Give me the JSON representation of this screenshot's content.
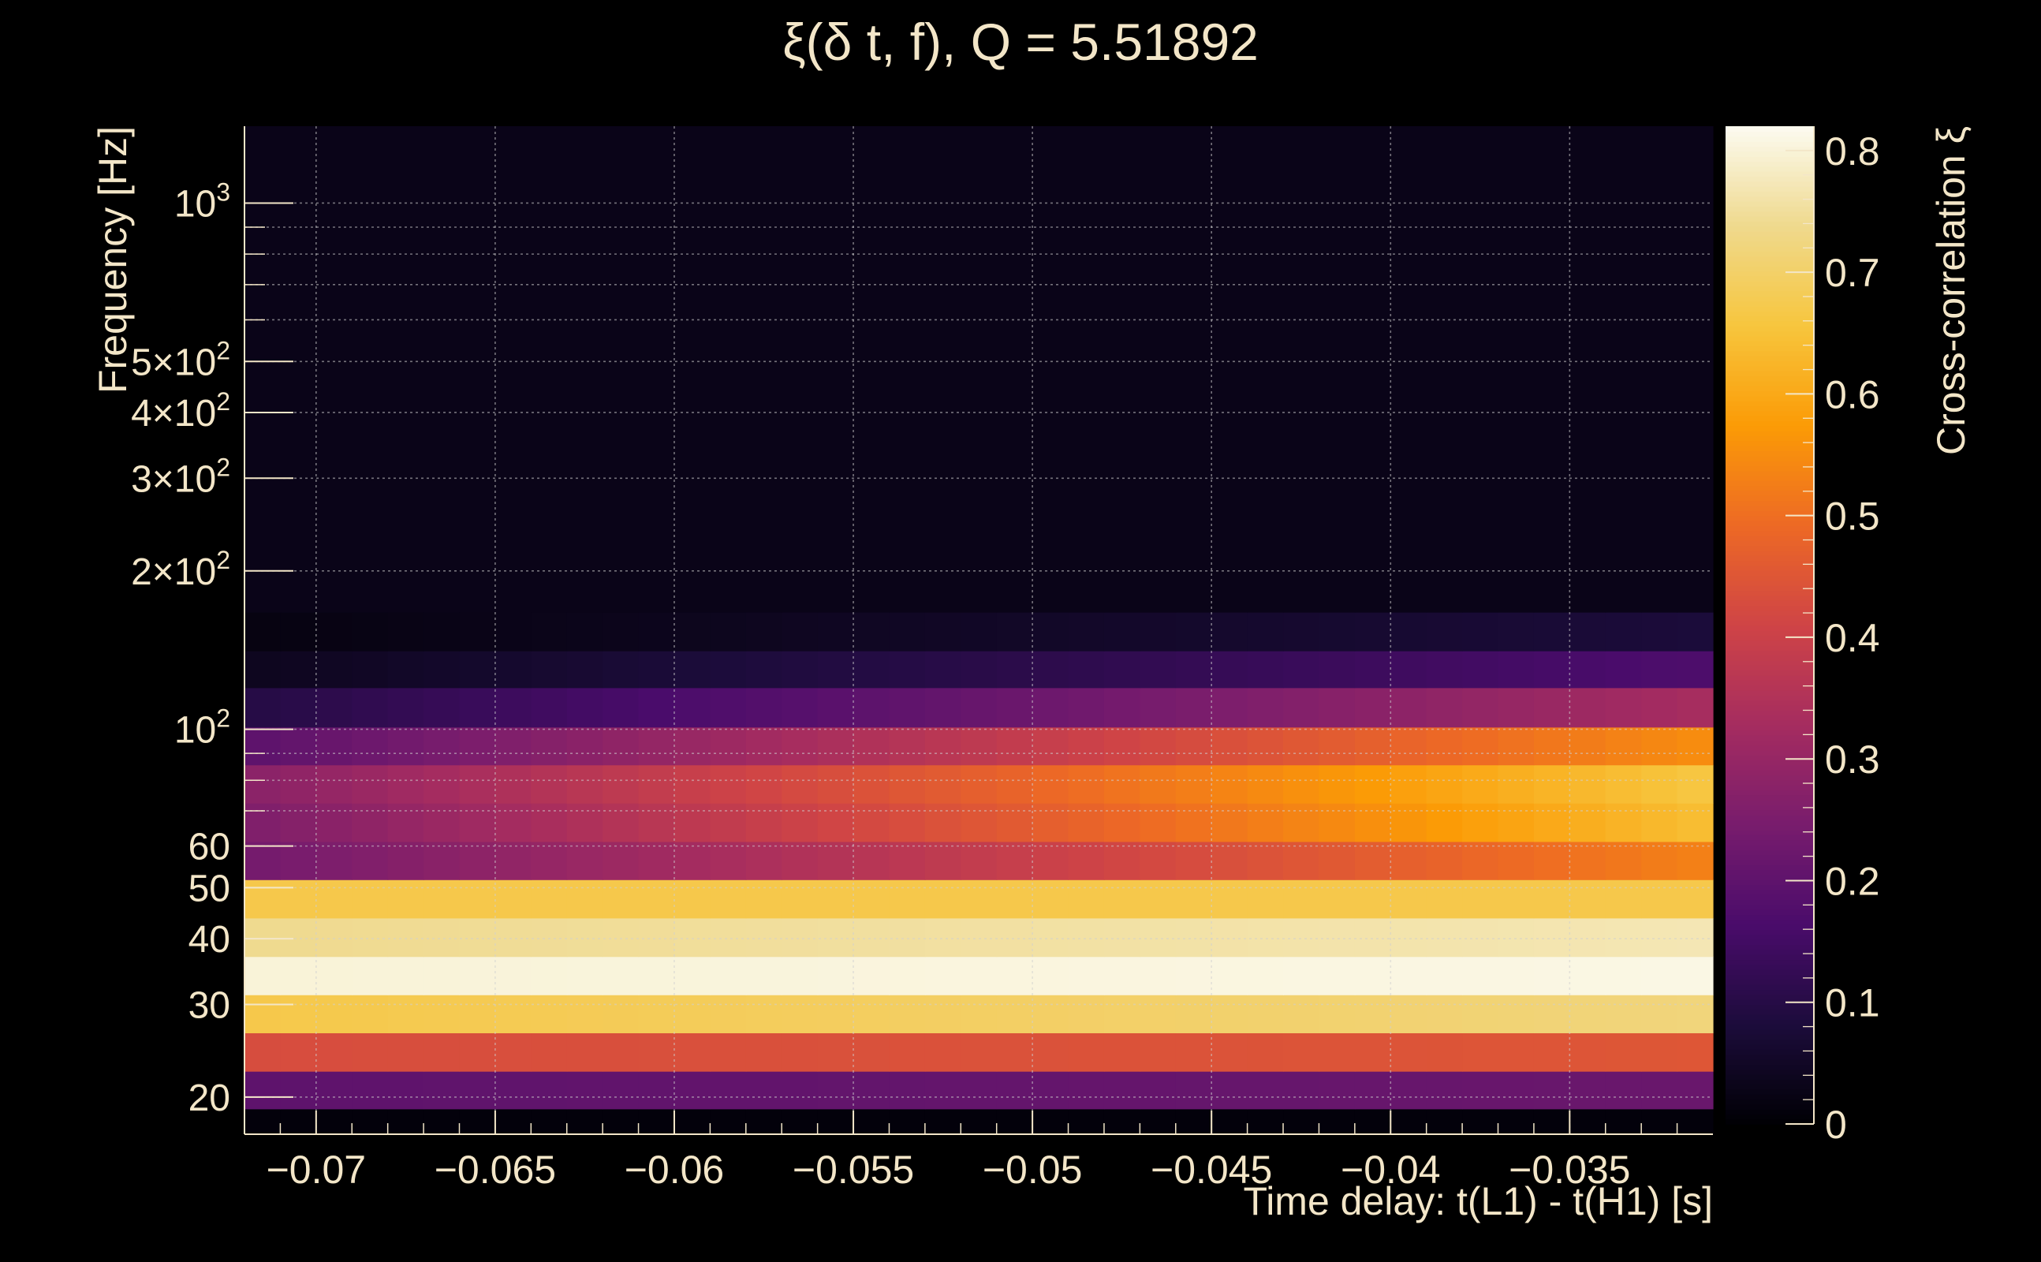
{
  "chart_data": {
    "type": "heatmap",
    "title": "ξ(δ t, f), Q = 5.51892",
    "xlabel": "Time delay: t(L1) - t(H1) [s]",
    "ylabel": "Frequency [Hz]",
    "colorbar_label": "Cross-correlation ξ",
    "xlim": [
      -0.072,
      -0.031
    ],
    "ylim": [
      17,
      1400
    ],
    "yscale": "log",
    "zlim": [
      0,
      0.82
    ],
    "grid": true,
    "colormap": [
      "#000004",
      "#1c0c3b",
      "#4a0c6b",
      "#781c6d",
      "#a52c60",
      "#cf4446",
      "#ed6925",
      "#fb9b06",
      "#f7c53d",
      "#efd98d",
      "#fcfbf0"
    ],
    "x_ticks": [
      {
        "value": -0.07,
        "label": "−0.07"
      },
      {
        "value": -0.065,
        "label": "−0.065"
      },
      {
        "value": -0.06,
        "label": "−0.06"
      },
      {
        "value": -0.055,
        "label": "−0.055"
      },
      {
        "value": -0.05,
        "label": "−0.05"
      },
      {
        "value": -0.045,
        "label": "−0.045"
      },
      {
        "value": -0.04,
        "label": "−0.04"
      },
      {
        "value": -0.035,
        "label": "−0.035"
      }
    ],
    "y_ticks": [
      {
        "value": 20,
        "mant": "20",
        "exp": ""
      },
      {
        "value": 30,
        "mant": "30",
        "exp": ""
      },
      {
        "value": 40,
        "mant": "40",
        "exp": ""
      },
      {
        "value": 50,
        "mant": "50",
        "exp": ""
      },
      {
        "value": 60,
        "mant": "60",
        "exp": ""
      },
      {
        "value": 100,
        "mant": "10",
        "exp": "2"
      },
      {
        "value": 200,
        "mant": "2×10",
        "exp": "2"
      },
      {
        "value": 300,
        "mant": "3×10",
        "exp": "2"
      },
      {
        "value": 400,
        "mant": "4×10",
        "exp": "2"
      },
      {
        "value": 500,
        "mant": "5×10",
        "exp": "2"
      },
      {
        "value": 1000,
        "mant": "10",
        "exp": "3"
      }
    ],
    "z_ticks": [
      {
        "value": 0,
        "label": "0"
      },
      {
        "value": 0.1,
        "label": "0.1"
      },
      {
        "value": 0.2,
        "label": "0.2"
      },
      {
        "value": 0.3,
        "label": "0.3"
      },
      {
        "value": 0.4,
        "label": "0.4"
      },
      {
        "value": 0.5,
        "label": "0.5"
      },
      {
        "value": 0.6,
        "label": "0.6"
      },
      {
        "value": 0.7,
        "label": "0.7"
      },
      {
        "value": 0.8,
        "label": "0.8"
      }
    ],
    "time_bins": [
      -0.072,
      -0.031,
      41
    ],
    "frequency_bands": [
      {
        "f_low": 17.0,
        "f_high": 19.0,
        "start": 0.01,
        "end": 0.01
      },
      {
        "f_low": 19.0,
        "f_high": 22.4,
        "start": 0.2,
        "end": 0.22
      },
      {
        "f_low": 22.4,
        "f_high": 26.5,
        "start": 0.43,
        "end": 0.45
      },
      {
        "f_low": 26.5,
        "f_high": 31.3,
        "start": 0.67,
        "end": 0.72
      },
      {
        "f_low": 31.3,
        "f_high": 37.0,
        "start": 0.8,
        "end": 0.81
      },
      {
        "f_low": 37.0,
        "f_high": 43.8,
        "start": 0.74,
        "end": 0.77
      },
      {
        "f_low": 43.8,
        "f_high": 51.8,
        "start": 0.67,
        "end": 0.67
      },
      {
        "f_low": 51.8,
        "f_high": 61.2,
        "start": 0.24,
        "end": 0.53
      },
      {
        "f_low": 61.2,
        "f_high": 72.4,
        "start": 0.26,
        "end": 0.64
      },
      {
        "f_low": 72.4,
        "f_high": 85.6,
        "start": 0.28,
        "end": 0.66
      },
      {
        "f_low": 85.6,
        "f_high": 101.0,
        "start": 0.2,
        "end": 0.55
      },
      {
        "f_low": 101.0,
        "f_high": 120.0,
        "start": 0.1,
        "end": 0.33
      },
      {
        "f_low": 120.0,
        "f_high": 141.0,
        "start": 0.04,
        "end": 0.17
      },
      {
        "f_low": 141.0,
        "f_high": 167.0,
        "start": 0.02,
        "end": 0.08
      },
      {
        "f_low": 167.0,
        "f_high": 1400.0,
        "start": 0.03,
        "end": 0.03
      }
    ]
  }
}
